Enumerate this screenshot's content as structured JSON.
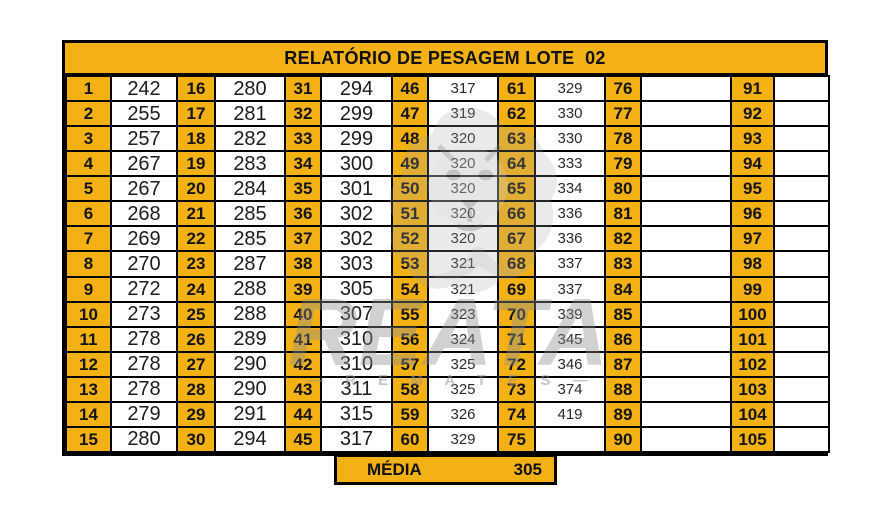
{
  "page": {
    "title": "RELATÓRIO DE PESAGEM LOTE  02"
  },
  "colors": {
    "accent_orange": "#F3B114",
    "border_black": "#000000"
  },
  "table": {
    "groups": [
      {
        "index_start": 1,
        "index_end": 15,
        "values": [
          "242",
          "255",
          "257",
          "267",
          "267",
          "268",
          "269",
          "270",
          "272",
          "273",
          "278",
          "278",
          "278",
          "279",
          "280"
        ]
      },
      {
        "index_start": 16,
        "index_end": 30,
        "values": [
          "280",
          "281",
          "282",
          "283",
          "284",
          "285",
          "285",
          "287",
          "288",
          "288",
          "289",
          "290",
          "290",
          "291",
          "294"
        ]
      },
      {
        "index_start": 31,
        "index_end": 45,
        "values": [
          "294",
          "299",
          "299",
          "300",
          "301",
          "302",
          "302",
          "303",
          "305",
          "307",
          "310",
          "310",
          "311",
          "315",
          "317"
        ]
      },
      {
        "index_start": 46,
        "index_end": 60,
        "values": [
          "317",
          "319",
          "320",
          "320",
          "320",
          "320",
          "320",
          "321",
          "321",
          "323",
          "324",
          "325",
          "325",
          "326",
          "329"
        ]
      },
      {
        "index_start": 61,
        "index_end": 75,
        "values": [
          "329",
          "330",
          "330",
          "333",
          "334",
          "336",
          "336",
          "337",
          "337",
          "339",
          "345",
          "346",
          "374",
          "419",
          ""
        ]
      },
      {
        "index_start": 76,
        "index_end": 90,
        "values": [
          "",
          "",
          "",
          "",
          "",
          "",
          "",
          "",
          "",
          "",
          "",
          "",
          "",
          "",
          ""
        ]
      },
      {
        "index_start": 91,
        "index_end": 105,
        "values": [
          "",
          "",
          "",
          "",
          "",
          "",
          "",
          "",
          "",
          "",
          "",
          "",
          "",
          "",
          ""
        ]
      }
    ],
    "rows_per_group": 15
  },
  "summary": {
    "label": "MÉDIA",
    "value": "305"
  },
  "watermark": {
    "brand": "REATA",
    "subtitle": "—  R E M A T E S  —",
    "lion_icon": "lion-head"
  }
}
